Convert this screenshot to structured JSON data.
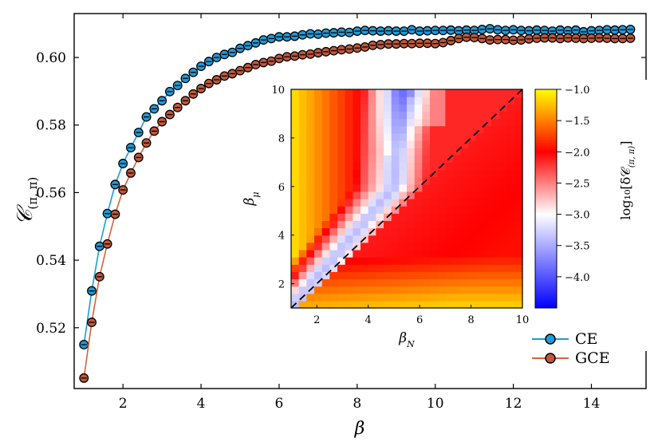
{
  "chart_data": [
    {
      "type": "scatter",
      "xlabel": "β",
      "ylabel": "𝒞",
      "ylabel_subscript": "(π, π)",
      "xlim": [
        0.75,
        15.4
      ],
      "ylim": [
        0.502,
        0.613
      ],
      "xticks": [
        2,
        4,
        6,
        8,
        10,
        12,
        14
      ],
      "yticks": [
        0.52,
        0.54,
        0.56,
        0.58,
        0.6
      ],
      "ytick_labels": [
        "0.52",
        "0.54",
        "0.56",
        "0.58",
        "0.60"
      ],
      "legend_position": "bottom-right",
      "series": [
        {
          "name": "CE",
          "color": "#1f9bd8",
          "marker_fill": "#1f9bd8",
          "x": [
            1.0,
            1.2,
            1.4,
            1.6,
            1.8,
            2.0,
            2.2,
            2.4,
            2.6,
            2.8,
            3.0,
            3.2,
            3.4,
            3.6,
            3.8,
            4.0,
            4.2,
            4.4,
            4.6,
            4.8,
            5.0,
            5.2,
            5.4,
            5.6,
            5.8,
            6.0,
            6.2,
            6.4,
            6.6,
            6.8,
            7.0,
            7.2,
            7.4,
            7.6,
            7.8,
            8.0,
            8.2,
            8.4,
            8.6,
            8.8,
            9.0,
            9.2,
            9.4,
            9.6,
            9.8,
            10.0,
            10.2,
            10.4,
            10.6,
            10.8,
            11.0,
            11.2,
            11.4,
            11.6,
            11.8,
            12.0,
            12.2,
            12.4,
            12.6,
            12.8,
            13.0,
            13.2,
            13.4,
            13.6,
            13.8,
            14.0,
            14.2,
            14.4,
            14.6,
            14.8,
            15.0
          ],
          "y": [
            0.515,
            0.5309,
            0.5441,
            0.5538,
            0.5624,
            0.5686,
            0.5733,
            0.5778,
            0.5824,
            0.5848,
            0.5872,
            0.5899,
            0.5917,
            0.5938,
            0.5956,
            0.5974,
            0.5988,
            0.6,
            0.6009,
            0.6015,
            0.6027,
            0.6035,
            0.6043,
            0.6052,
            0.6056,
            0.6061,
            0.6061,
            0.6063,
            0.6067,
            0.607,
            0.6069,
            0.6072,
            0.6073,
            0.6075,
            0.6074,
            0.6078,
            0.608,
            0.6079,
            0.6078,
            0.6079,
            0.6078,
            0.6078,
            0.6082,
            0.6078,
            0.6079,
            0.608,
            0.608,
            0.6081,
            0.6079,
            0.6081,
            0.608,
            0.6083,
            0.6085,
            0.6082,
            0.608,
            0.6082,
            0.608,
            0.6079,
            0.6081,
            0.608,
            0.6078,
            0.6081,
            0.6079,
            0.6081,
            0.6076,
            0.6079,
            0.608,
            0.6082,
            0.6081,
            0.6082,
            0.6083
          ]
        },
        {
          "name": "GCE",
          "color": "#d2643c",
          "marker_fill": "#c0583a",
          "x": [
            1.0,
            1.2,
            1.4,
            1.6,
            1.8,
            2.0,
            2.2,
            2.4,
            2.6,
            2.8,
            3.0,
            3.2,
            3.4,
            3.6,
            3.8,
            4.0,
            4.2,
            4.4,
            4.6,
            4.8,
            5.0,
            5.2,
            5.4,
            5.6,
            5.8,
            6.0,
            6.2,
            6.4,
            6.6,
            6.8,
            7.0,
            7.2,
            7.4,
            7.6,
            7.8,
            8.0,
            8.2,
            8.4,
            8.6,
            8.8,
            9.0,
            9.2,
            9.4,
            9.6,
            9.8,
            10.0,
            10.2,
            10.4,
            10.6,
            10.8,
            11.0,
            11.2,
            11.4,
            11.6,
            11.8,
            12.0,
            12.2,
            12.4,
            12.6,
            12.8,
            13.0,
            13.2,
            13.4,
            13.6,
            13.8,
            14.0,
            14.2,
            14.4,
            14.6,
            14.8,
            15.0
          ],
          "y": [
            0.5051,
            0.5216,
            0.5351,
            0.5448,
            0.5536,
            0.5608,
            0.5658,
            0.5704,
            0.5747,
            0.5782,
            0.581,
            0.5831,
            0.5852,
            0.5872,
            0.5892,
            0.5908,
            0.5923,
            0.5934,
            0.5945,
            0.5952,
            0.5961,
            0.597,
            0.5979,
            0.5985,
            0.5989,
            0.5997,
            0.6002,
            0.6004,
            0.6008,
            0.601,
            0.6014,
            0.6017,
            0.602,
            0.6023,
            0.6025,
            0.6028,
            0.6031,
            0.6036,
            0.6038,
            0.604,
            0.604,
            0.6041,
            0.6041,
            0.6042,
            0.6042,
            0.6041,
            0.6044,
            0.605,
            0.6056,
            0.606,
            0.6059,
            0.6056,
            0.6052,
            0.6053,
            0.6053,
            0.6051,
            0.6052,
            0.6055,
            0.6057,
            0.6058,
            0.6058,
            0.6056,
            0.6058,
            0.6057,
            0.6056,
            0.6057,
            0.6058,
            0.6057,
            0.6056,
            0.6056,
            0.6057
          ]
        }
      ]
    },
    {
      "type": "heatmap",
      "xlabel": "β",
      "xlabel_subscript": "N",
      "ylabel": "β",
      "ylabel_subscript": "μ",
      "xlim": [
        1,
        10
      ],
      "ylim": [
        1,
        10
      ],
      "xticks": [
        2,
        4,
        6,
        8,
        10
      ],
      "yticks": [
        2,
        4,
        6,
        8,
        10
      ],
      "grid_size": 30,
      "diagonal_line": "dashed y = x",
      "colorbar": {
        "label": "log₁₀[δ𝒞",
        "label_subscript": "(π, π)",
        "label_suffix": "]",
        "range": [
          -4.5,
          -1.0
        ],
        "ticks": [
          -1.0,
          -1.5,
          -2.0,
          -2.5,
          -3.0,
          -3.5,
          -4.0
        ],
        "tick_labels": [
          "−1.0",
          "−1.5",
          "−2.0",
          "−2.5",
          "−3.0",
          "−3.5",
          "−4.0"
        ],
        "colormap": [
          {
            "v": -1.0,
            "color": "#ffff00"
          },
          {
            "v": -2.0,
            "color": "#ff0000"
          },
          {
            "v": -3.0,
            "color": "#ffffff"
          },
          {
            "v": -4.5,
            "color": "#0000ff"
          }
        ]
      },
      "value_model": "values estimated from color: near -1.1 at low beta_N, about -2.1 in the central band, about -3.2 to -4.4 along a curved valley from (1,1) to (5.3,10), near -1.3 at low beta_mu below the diagonal"
    }
  ]
}
